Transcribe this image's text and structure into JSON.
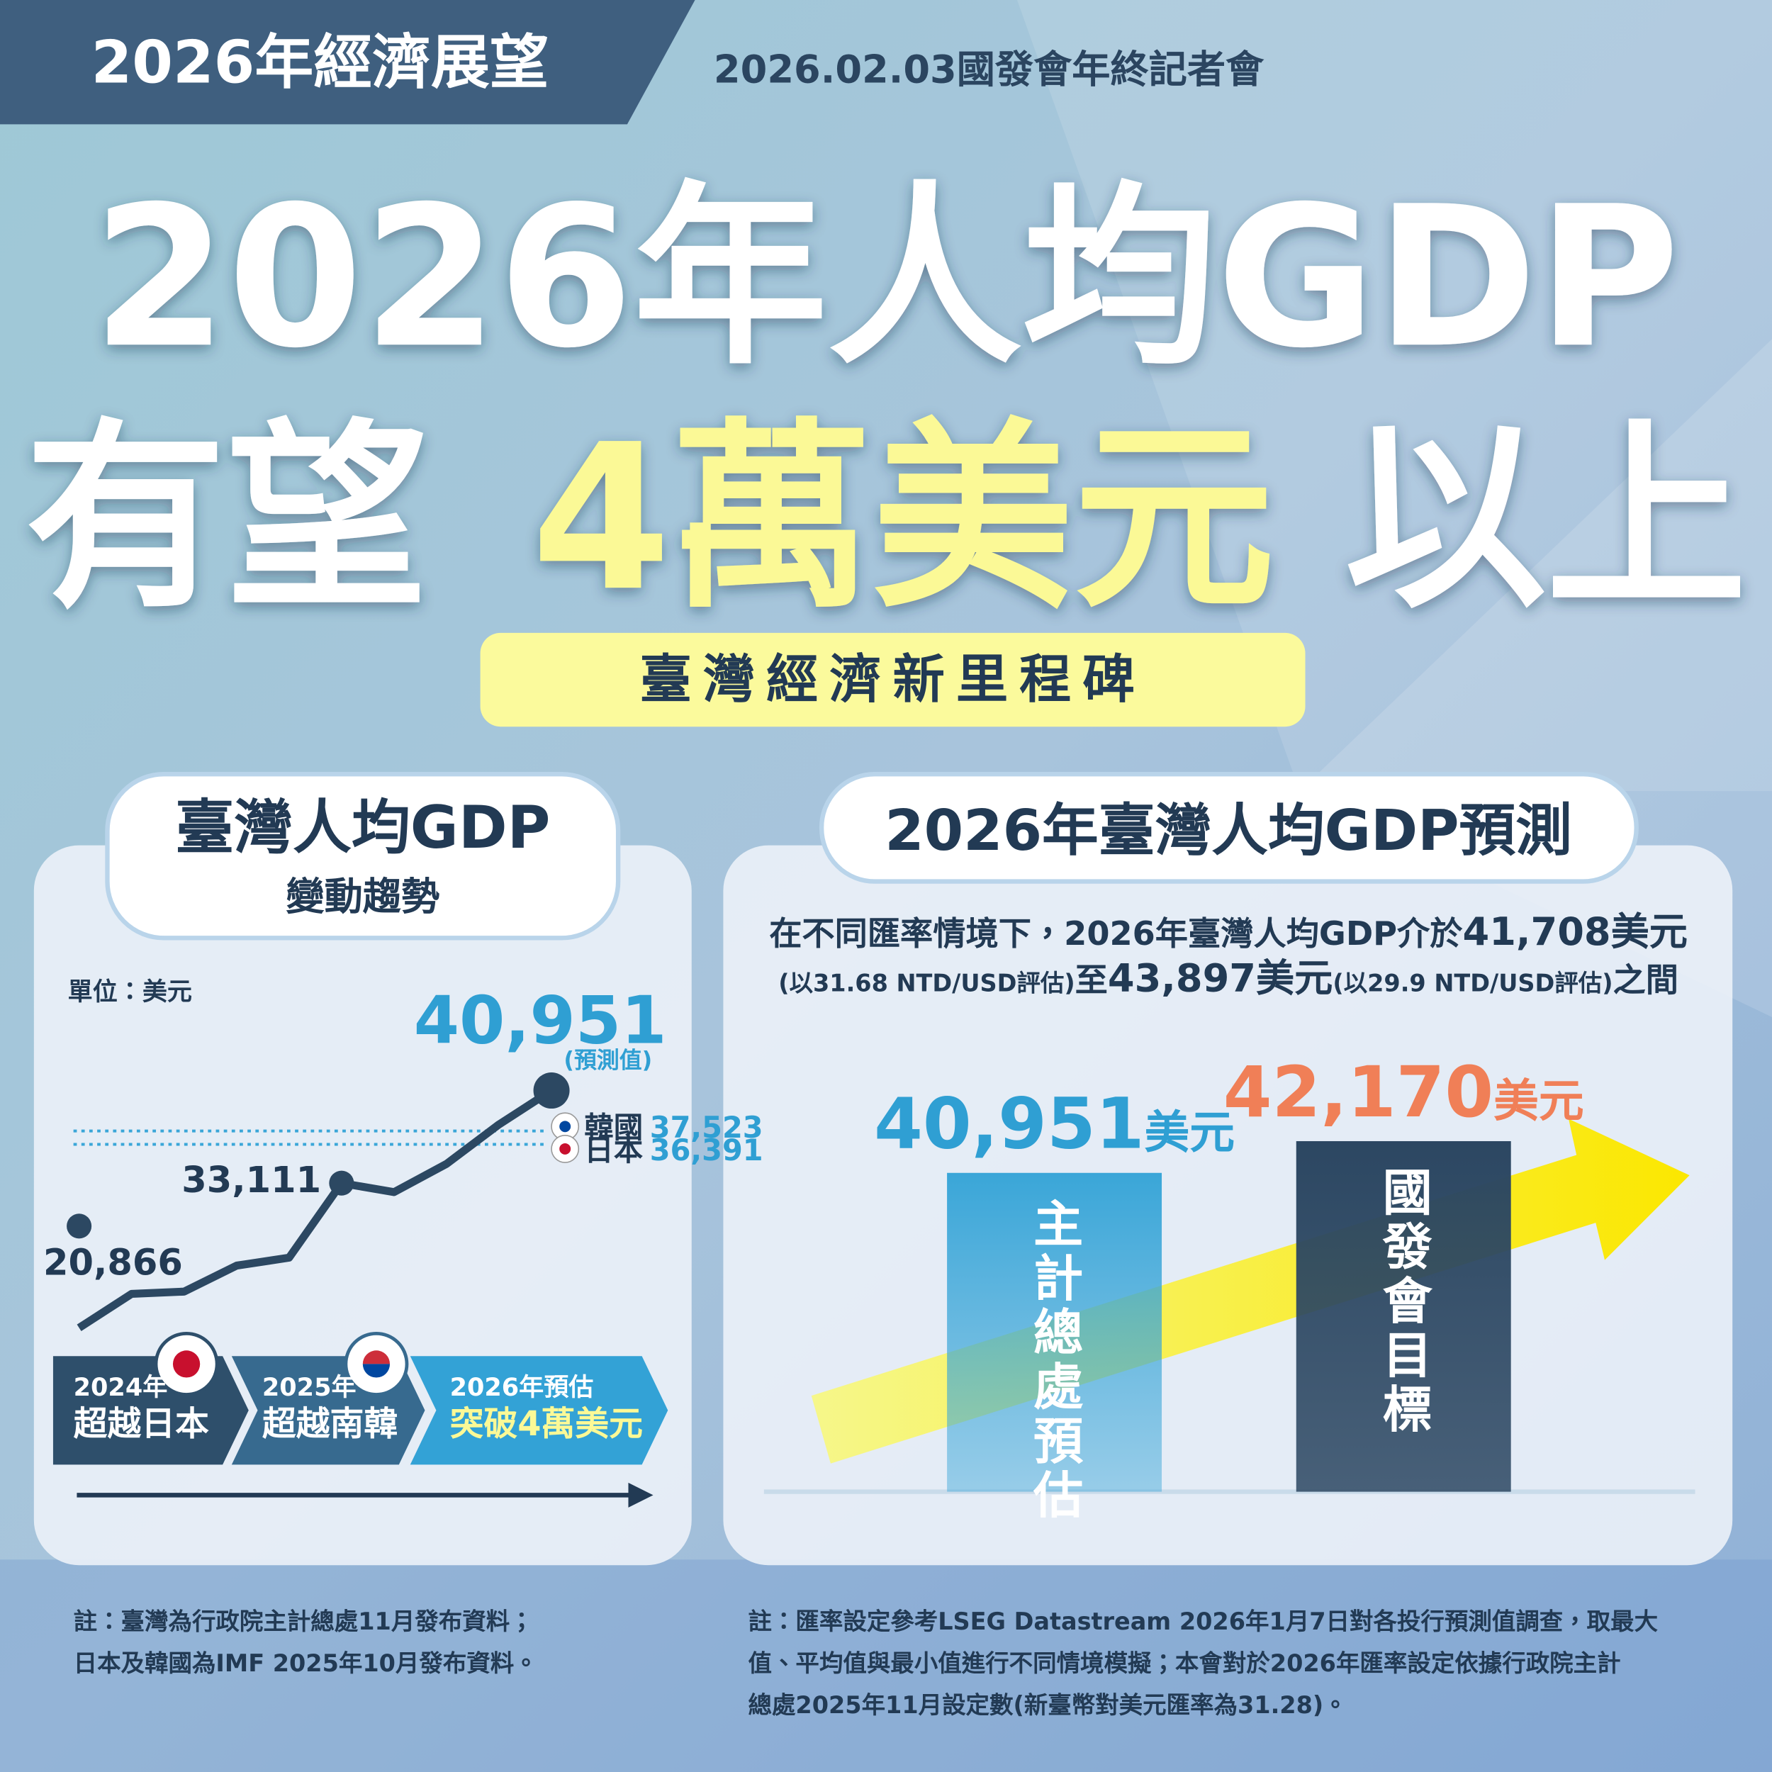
{
  "header": {
    "tag": "2026年經濟展望",
    "event": "2026.02.03國發會年終記者會"
  },
  "headline": {
    "line1": "2026年人均GDP",
    "prefix": "有望",
    "highlight": "4萬美元",
    "suffix": "以上"
  },
  "badge": "臺灣經濟新里程碑",
  "left_panel": {
    "title": "臺灣人均GDP",
    "subtitle": "變動趨勢",
    "unit": "單位：美元",
    "forecast_note": "(預測值)",
    "milestones": [
      {
        "year": "2024年",
        "text": "超越日本"
      },
      {
        "year": "2025年",
        "text": "超越南韓"
      },
      {
        "year": "2026年預估",
        "text": "突破4萬美元"
      }
    ],
    "notes": [
      "註：臺灣為行政院主計總處11月發布資料；",
      "日本及韓國為IMF 2025年10月發布資料。"
    ]
  },
  "right_panel": {
    "title": "2026年臺灣人均GDP預測",
    "desc1": {
      "text": "在不同匯率情境下，2026年臺灣人均GDP介於",
      "low": "41,708美元"
    },
    "desc2": {
      "low_note": "(以31.68 NTD/USD評估)",
      "to": "至",
      "high": "43,897美元",
      "high_note": "(以29.9 NTD/USD評估)",
      "end": "之間"
    },
    "notes": [
      "註：匯率設定參考LSEG Datastream 2026年1月7日對各投行預測值調查，取最大",
      "值、平均值與最小值進行不同情境模擬；本會對於2026年匯率設定依據行政院主計",
      "總處2025年11月設定數(新臺幣對美元匯率為31.28)。"
    ]
  },
  "chart_data": [
    {
      "type": "line",
      "series": [
        {
          "color": "#2c4862",
          "values": [
            20866,
            23740,
            23930,
            26130,
            26800,
            33111,
            32350,
            34740,
            38080,
            40951
          ],
          "value_labels": [
            "20,866",
            null,
            null,
            null,
            null,
            "33,111",
            null,
            null,
            null,
            "40,951"
          ]
        }
      ],
      "ylim": [
        20000,
        42000
      ],
      "reference_lines": [
        {
          "name": "韓國",
          "value": 37523,
          "label": "37,523"
        },
        {
          "name": "日本",
          "value": 36391,
          "label": "36,391"
        }
      ]
    },
    {
      "type": "bar",
      "categories": [
        "主計總處預估",
        "國發會目標"
      ],
      "values": [
        40951,
        42170
      ],
      "value_labels": [
        "40,951",
        "42,170"
      ],
      "unit": "美元",
      "ylim": [
        28700,
        45200
      ],
      "colors": [
        "#3aa6d8",
        "#2c4762"
      ],
      "label_colors": [
        "#2f9fd3",
        "#f07f57"
      ]
    }
  ]
}
